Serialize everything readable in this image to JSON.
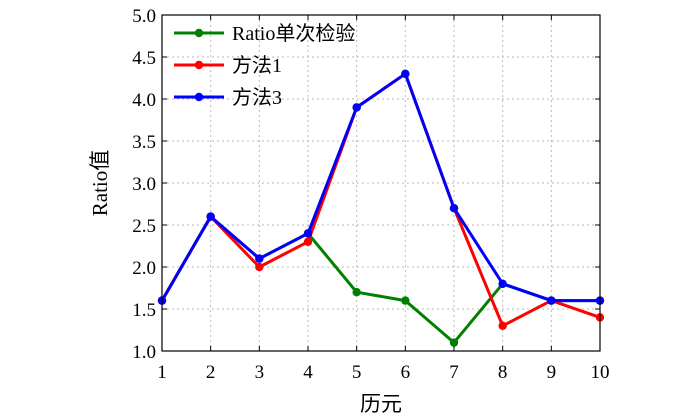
{
  "chart_data": {
    "type": "line",
    "x": [
      1,
      2,
      3,
      4,
      5,
      6,
      7,
      8,
      9,
      10
    ],
    "series": [
      {
        "name": "Ratio单次检验",
        "color": "#008000",
        "values": [
          1.6,
          2.6,
          2.1,
          2.4,
          1.7,
          1.6,
          1.1,
          1.8,
          1.6,
          1.6
        ]
      },
      {
        "name": "方法1",
        "color": "#ff0000",
        "values": [
          1.6,
          2.6,
          2.0,
          2.3,
          3.9,
          4.3,
          2.7,
          1.3,
          1.6,
          1.4
        ]
      },
      {
        "name": "方法3",
        "color": "#0000ff",
        "values": [
          1.6,
          2.6,
          2.1,
          2.4,
          3.9,
          4.3,
          2.7,
          1.8,
          1.6,
          1.6
        ]
      }
    ],
    "xlabel": "历元",
    "ylabel": "Ratio值",
    "xlim": [
      1,
      10
    ],
    "ylim": [
      1.0,
      5.0
    ],
    "xticks": [
      "1",
      "2",
      "3",
      "4",
      "5",
      "6",
      "7",
      "8",
      "9",
      "10"
    ],
    "yticks": [
      "1.0",
      "1.5",
      "2.0",
      "2.5",
      "3.0",
      "3.5",
      "4.0",
      "4.5",
      "5.0"
    ],
    "grid": true,
    "legend_position": "top-left"
  }
}
